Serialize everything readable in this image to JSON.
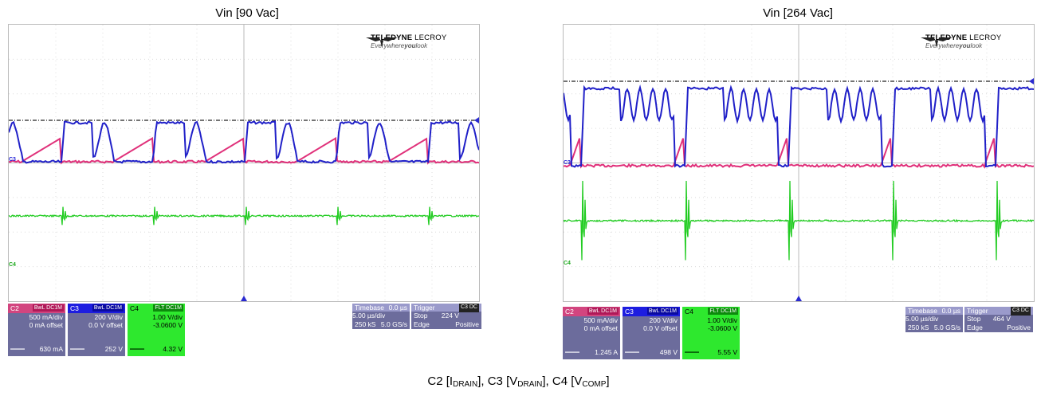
{
  "panels": [
    {
      "title": "Vin [90 Vac]",
      "logo": {
        "brand_bold": "TELEDYNE",
        "brand_thin": "LECROY",
        "tagline_pre": "Everywhere",
        "tagline_bold": "you",
        "tagline_post": "look"
      },
      "channels": [
        {
          "label": "C2",
          "chip": "BwL DC1M",
          "color": "#e0307a",
          "lines": [
            "500 mA/div",
            "0 mA offset"
          ],
          "measure": "630 mA"
        },
        {
          "label": "C3",
          "chip": "BwL DC1M",
          "color": "#2424d8",
          "lines": [
            "200 V/div",
            "0.0 V offset"
          ],
          "measure": "252 V"
        },
        {
          "label": "C4",
          "chip": "FLT DC1M",
          "color": "#1ee61e",
          "lines": [
            "1.00 V/div",
            "-3.0600 V"
          ],
          "measure": "4.32 V"
        }
      ],
      "timebase": {
        "label": "Timebase",
        "offset": "0.0 µs",
        "div": "5.00 µs/div",
        "samples": "250 kS",
        "rate": "5.0 GS/s"
      },
      "trigger": {
        "label": "Trigger",
        "chip": "C3 DC",
        "mode": "Stop",
        "level": "224 V",
        "type": "Edge",
        "slope": "Positive"
      },
      "ch_markers": [
        "C3",
        "C4"
      ]
    },
    {
      "title": "Vin [264 Vac]",
      "logo": {
        "brand_bold": "TELEDYNE",
        "brand_thin": "LECROY",
        "tagline_pre": "Everywhere",
        "tagline_bold": "you",
        "tagline_post": "look"
      },
      "channels": [
        {
          "label": "C2",
          "chip": "BwL DC1M",
          "color": "#e0307a",
          "lines": [
            "500 mA/div",
            "0 mA offset"
          ],
          "measure": "1.245 A"
        },
        {
          "label": "C3",
          "chip": "BwL DC1M",
          "color": "#2424d8",
          "lines": [
            "200 V/div",
            "0.0 V offset"
          ],
          "measure": "498 V"
        },
        {
          "label": "C4",
          "chip": "FLT DC1M",
          "color": "#1ee61e",
          "lines": [
            "1.00 V/div",
            "-3.0600 V"
          ],
          "measure": "5.55 V"
        }
      ],
      "timebase": {
        "label": "Timebase",
        "offset": "0.0 µs",
        "div": "5.00 µs/div",
        "samples": "250 kS",
        "rate": "5.0 GS/s"
      },
      "trigger": {
        "label": "Trigger",
        "chip": "C3 DC",
        "mode": "Stop",
        "level": "464 V",
        "type": "Edge",
        "slope": "Positive"
      },
      "ch_markers": [
        "C3",
        "C4"
      ]
    }
  ],
  "caption": {
    "c2": "C2 [I",
    "c2_sub": "DRAIN",
    "c3": "], C3 [V",
    "c3_sub": "DRAIN",
    "c4": "], C4 [V",
    "c4_sub": "COMP",
    "end": "]"
  },
  "colors": {
    "current": "#e0307a",
    "drain": "#2020c8",
    "comp": "#22cc22",
    "grid": "#dcdcdc"
  }
}
